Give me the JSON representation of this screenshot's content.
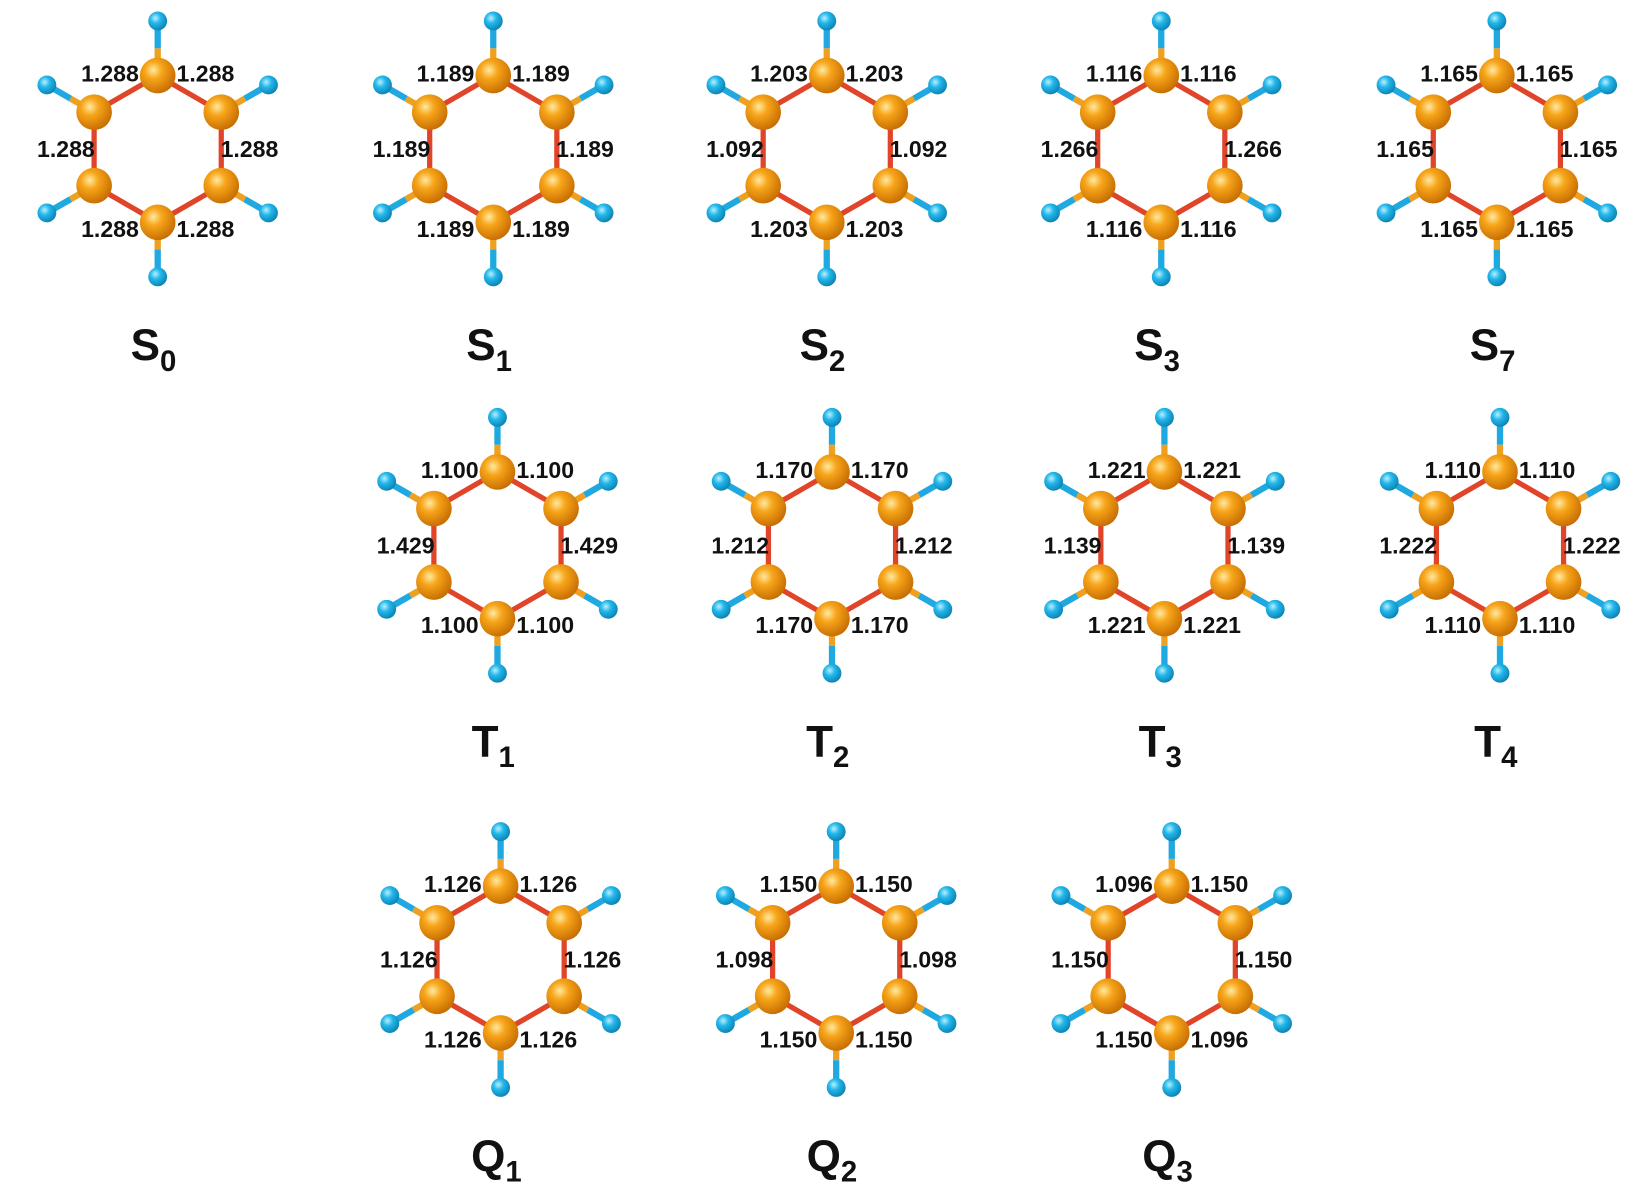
{
  "molecules": [
    {
      "state": "S",
      "index": "0",
      "bonds": [
        "1.288",
        "1.288",
        "1.288",
        "1.288",
        "1.288",
        "1.288"
      ]
    },
    {
      "state": "S",
      "index": "1",
      "bonds": [
        "1.189",
        "1.189",
        "1.189",
        "1.189",
        "1.189",
        "1.189"
      ]
    },
    {
      "state": "S",
      "index": "2",
      "bonds": [
        "1.203",
        "1.203",
        "1.092",
        "1.092",
        "1.203",
        "1.203"
      ]
    },
    {
      "state": "S",
      "index": "3",
      "bonds": [
        "1.116",
        "1.116",
        "1.266",
        "1.266",
        "1.116",
        "1.116"
      ]
    },
    {
      "state": "S",
      "index": "7",
      "bonds": [
        "1.165",
        "1.165",
        "1.165",
        "1.165",
        "1.165",
        "1.165"
      ]
    },
    {
      "state": "T",
      "index": "1",
      "bonds": [
        "1.100",
        "1.100",
        "1.429",
        "1.429",
        "1.100",
        "1.100"
      ]
    },
    {
      "state": "T",
      "index": "2",
      "bonds": [
        "1.170",
        "1.170",
        "1.212",
        "1.212",
        "1.170",
        "1.170"
      ]
    },
    {
      "state": "T",
      "index": "3",
      "bonds": [
        "1.221",
        "1.221",
        "1.139",
        "1.139",
        "1.221",
        "1.221"
      ]
    },
    {
      "state": "T",
      "index": "4",
      "bonds": [
        "1.110",
        "1.110",
        "1.222",
        "1.222",
        "1.110",
        "1.110"
      ]
    },
    {
      "state": "Q",
      "index": "1",
      "bonds": [
        "1.126",
        "1.126",
        "1.126",
        "1.126",
        "1.126",
        "1.126"
      ]
    },
    {
      "state": "Q",
      "index": "2",
      "bonds": [
        "1.150",
        "1.150",
        "1.098",
        "1.098",
        "1.150",
        "1.150"
      ]
    },
    {
      "state": "Q",
      "index": "3",
      "bonds": [
        "1.096",
        "1.150",
        "1.150",
        "1.150",
        "1.150",
        "1.096"
      ]
    }
  ]
}
